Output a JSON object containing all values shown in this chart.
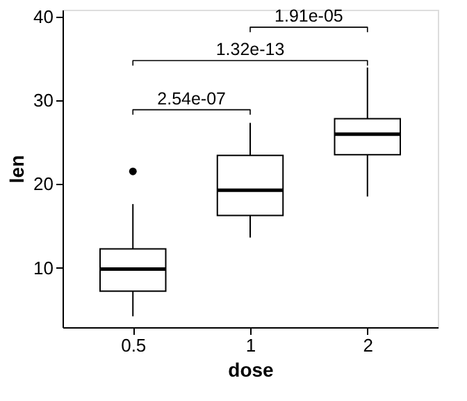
{
  "chart_data": {
    "type": "box",
    "xlabel": "dose",
    "ylabel": "len",
    "categories": [
      "0.5",
      "1",
      "2"
    ],
    "boxes": [
      {
        "low": 4.2,
        "q1": 7.2,
        "median": 9.85,
        "q3": 12.25,
        "high": 17.6,
        "outliers": [
          21.5
        ]
      },
      {
        "low": 13.6,
        "q1": 16.25,
        "median": 19.25,
        "q3": 23.4,
        "high": 27.3
      },
      {
        "low": 18.5,
        "q1": 23.5,
        "median": 25.95,
        "q3": 27.8,
        "high": 33.9
      }
    ],
    "ylim": [
      2.9,
      40.8
    ],
    "yticks": [
      10,
      20,
      30,
      40
    ],
    "grid": false,
    "annotations": [
      "2.54e-07",
      "1.32e-13",
      "1.91e-05"
    ]
  }
}
